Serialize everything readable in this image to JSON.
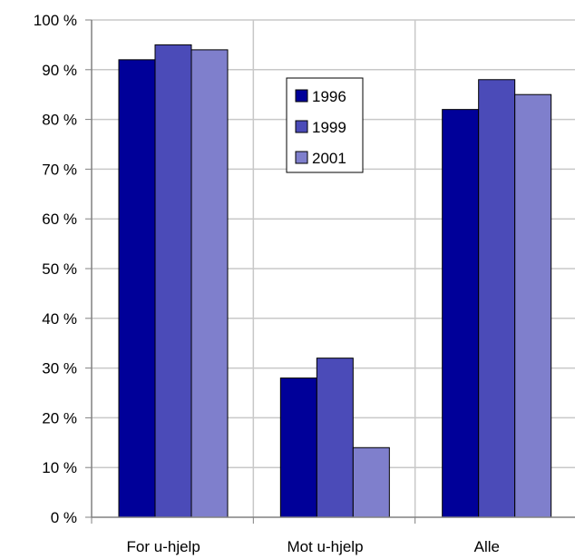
{
  "chart_data": {
    "type": "bar",
    "categories": [
      "For u-hjelp",
      "Mot u-hjelp",
      "Alle"
    ],
    "series": [
      {
        "name": "1996",
        "values": [
          92,
          28,
          82
        ],
        "color": "#000099"
      },
      {
        "name": "1999",
        "values": [
          95,
          32,
          88
        ],
        "color": "#4B4BB8"
      },
      {
        "name": "2001",
        "values": [
          94,
          14,
          85
        ],
        "color": "#7F7FCC"
      }
    ],
    "ylim": [
      0,
      100
    ],
    "yticks": [
      0,
      10,
      20,
      30,
      40,
      50,
      60,
      70,
      80,
      90,
      100
    ],
    "ytick_labels": [
      "0 %",
      "10 %",
      "20 %",
      "30 %",
      "40 %",
      "50 %",
      "60 %",
      "70 %",
      "80 %",
      "90 %",
      "100 %"
    ],
    "grid": true,
    "legend_position": "upper-center",
    "title": "",
    "xlabel": "",
    "ylabel": ""
  }
}
